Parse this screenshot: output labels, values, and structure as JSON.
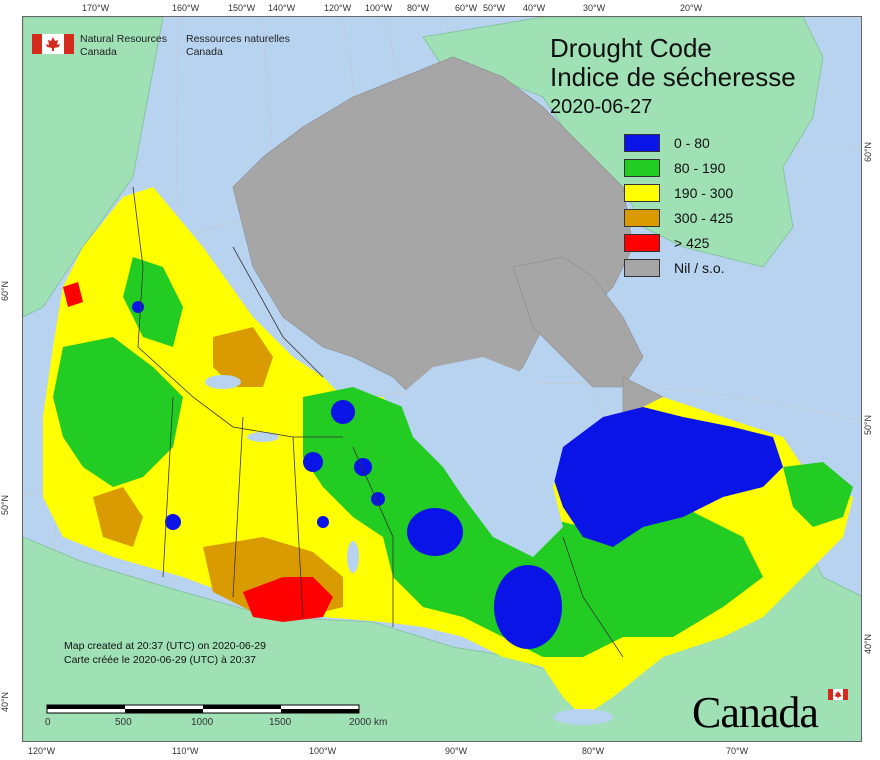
{
  "agency": {
    "en_line1": "Natural Resources",
    "en_line2": "Canada",
    "fr_line1": "Ressources naturelles",
    "fr_line2": "Canada"
  },
  "title": {
    "en": "Drought Code",
    "fr": "Indice de sécheresse",
    "date": "2020-06-27"
  },
  "legend": [
    {
      "label": "0 - 80",
      "color": "#0a14e6"
    },
    {
      "label": "80 - 190",
      "color": "#22cc22"
    },
    {
      "label": "190 - 300",
      "color": "#ffff00"
    },
    {
      "label": "300 - 425",
      "color": "#d99b00"
    },
    {
      "label": "> 425",
      "color": "#ff0000"
    },
    {
      "label": "Nil / s.o.",
      "color": "#a6a6a6"
    }
  ],
  "credit": {
    "en": "Map created at 20:37 (UTC) on 2020-06-29",
    "fr": "Carte créée le 2020-06-29 (UTC) à 20:37"
  },
  "scale": {
    "labels": [
      "0",
      "500",
      "1000",
      "1500",
      "2000 km"
    ]
  },
  "wordmark": "Canada",
  "graticule": {
    "top": [
      "170°W",
      "160°W",
      "150°W",
      "140°W",
      "120°W",
      "100°W",
      "80°W",
      "60°W",
      "50°W",
      "40°W",
      "30°W",
      "20°W"
    ],
    "bottom": [
      "120°W",
      "110°W",
      "100°W",
      "90°W",
      "80°W",
      "70°W"
    ],
    "left": [
      "60°N",
      "50°N",
      "40°N"
    ],
    "right": [
      "60°N",
      "50°N",
      "40°N"
    ]
  },
  "colors": {
    "ocean": "#b7d3ef",
    "foreign_land": "#9fe0b4",
    "nil": "#a6a6a6"
  }
}
